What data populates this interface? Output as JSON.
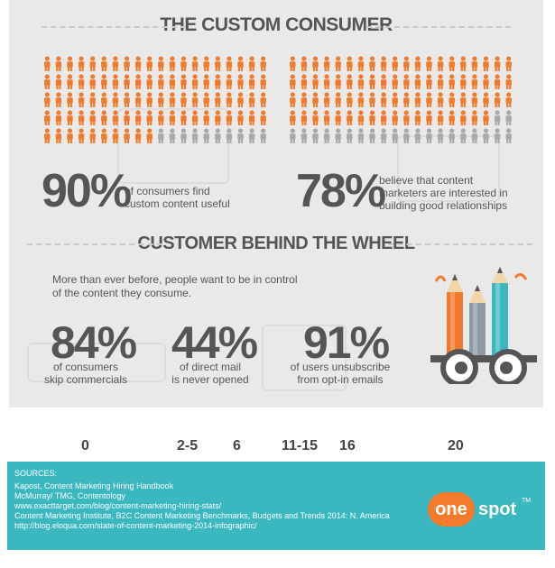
{
  "section1": {
    "title": "THE CUSTOM CONSUMER",
    "stats": [
      {
        "value": "90%",
        "text": "of consumers find custom content useful",
        "line1": "of consumers find",
        "line2": "custom content useful",
        "people_total": 100,
        "people_highlighted": 90
      },
      {
        "value": "78%",
        "text": "believe that content marketers are interested in building good relationships",
        "line1": "believe that content",
        "line2": "marketers are interested in",
        "line3": "building good relationships",
        "people_total": 100,
        "people_highlighted": 78
      }
    ]
  },
  "section2": {
    "title": "CUSTOMER BEHIND THE WHEEL",
    "intro_line1": "More than ever before, people want to be in control",
    "intro_line2": "of the content they consume.",
    "stats": [
      {
        "value": "84%",
        "line1": "of consumers",
        "line2": "skip commercials"
      },
      {
        "value": "44%",
        "line1": "of direct mail",
        "line2": "is never opened"
      },
      {
        "value": "91%",
        "line1": "of users unsubscribe",
        "line2": "from opt-in emails"
      }
    ]
  },
  "scrap_fragments": [
    "0",
    "2-5",
    "6",
    "11-15",
    "16",
    "20"
  ],
  "footer": {
    "sources_label": "SOURCES:",
    "sources": [
      "Kapost, Content Marketing Hiring Handbook",
      "McMurray/ TMG, Contentology",
      "www.exacttarget.com/blog/content-marketing-hiring-stats/",
      "Content Marketing Institute, B2C Content Marketing Benchmarks, Budgets and Trends 2014: N. America",
      "http://blog.eloqua.com/state-of-content-marketing-2014-infographic/"
    ],
    "logo_left": "one",
    "logo_right": "spot",
    "logo_tm": "TM"
  },
  "colors": {
    "highlight": "#f07a2c",
    "muted": "#a9a9a9",
    "panel_bg": "#e9e9e9",
    "text": "#555555",
    "footer_bg": "#3bb7c0",
    "logo_orange": "#f47a2c"
  }
}
